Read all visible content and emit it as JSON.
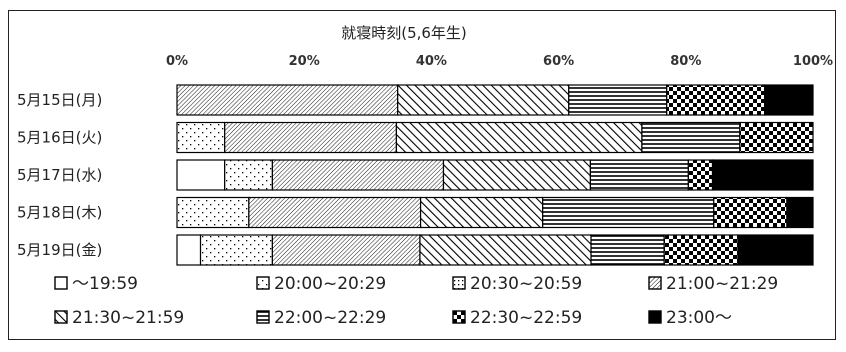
{
  "chart_data": {
    "type": "bar",
    "stacked": true,
    "orientation": "horizontal",
    "title": "就寝時刻(5,6年生)",
    "categories": [
      "5月15日(月)",
      "5月16日(火)",
      "5月17日(水)",
      "5月18日(木)",
      "5月19日(金)"
    ],
    "xticks": [
      "0%",
      "20%",
      "40%",
      "60%",
      "80%",
      "100%"
    ],
    "xlim": [
      0,
      100
    ],
    "grid": false,
    "legend_position": "bottom",
    "series": [
      {
        "name": "～19:59",
        "pattern": "blank",
        "values": [
          0,
          0,
          7.5,
          0,
          3.7
        ]
      },
      {
        "name": "20:00~20:29",
        "pattern": "sparse-dots",
        "values": [
          0,
          7.5,
          7.5,
          11.3,
          11.3
        ]
      },
      {
        "name": "20:30~20:59",
        "pattern": "dense-dots",
        "values": [
          0,
          0,
          0,
          0,
          0
        ]
      },
      {
        "name": "21:00~21:29",
        "pattern": "fine-hatch",
        "values": [
          34.7,
          27.0,
          26.9,
          27.0,
          23.2
        ]
      },
      {
        "name": "21:30~21:59",
        "pattern": "diagonal",
        "values": [
          26.9,
          38.6,
          23.1,
          19.2,
          26.9
        ]
      },
      {
        "name": "22:00~22:29",
        "pattern": "horizontal",
        "values": [
          15.4,
          15.4,
          15.4,
          26.9,
          11.5
        ]
      },
      {
        "name": "22:30~22:59",
        "pattern": "checker",
        "values": [
          15.4,
          11.5,
          3.8,
          11.5,
          11.6
        ]
      },
      {
        "name": "23:00～",
        "pattern": "solid",
        "values": [
          7.6,
          0,
          15.8,
          4.1,
          11.8
        ]
      }
    ]
  },
  "colors": {
    "ink": "#000000",
    "frame": "#222222",
    "text": "#222222"
  }
}
